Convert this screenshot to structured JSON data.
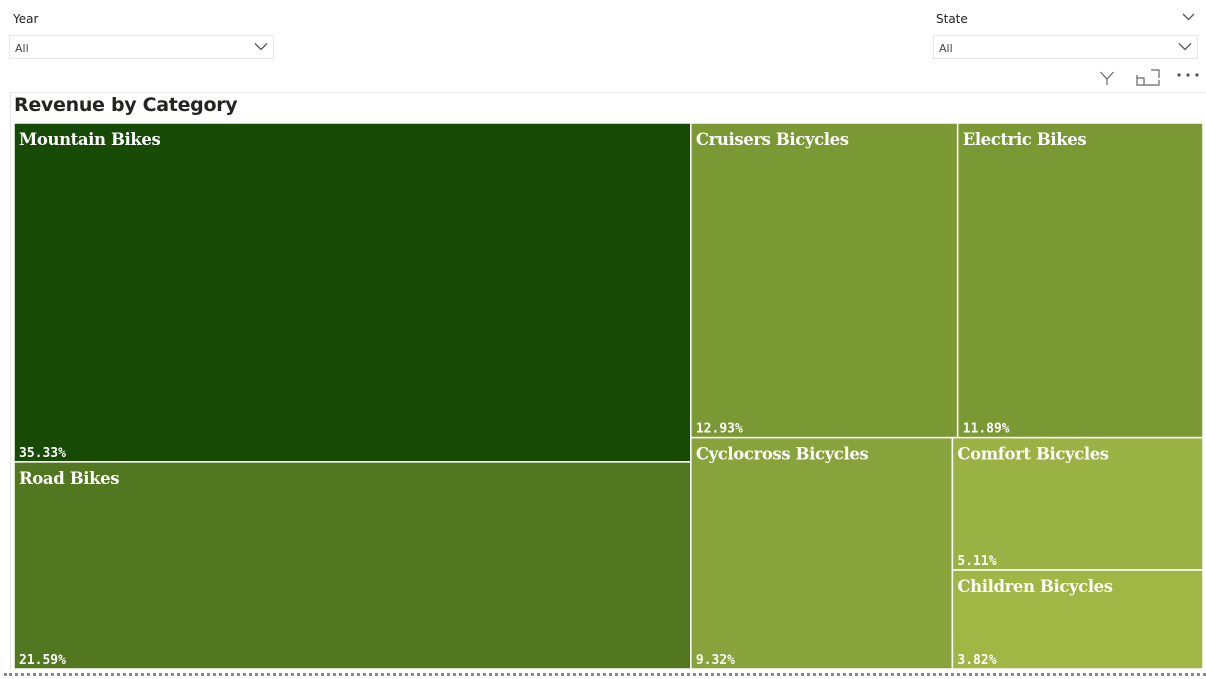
{
  "filters": {
    "year": {
      "label": "Year",
      "value": "All"
    },
    "state": {
      "label": "State",
      "value": "All"
    }
  },
  "icons": {
    "dropdown": "chevron-down-icon",
    "filter": "filter-icon",
    "focus_mode": "focus-mode-icon",
    "more_options": "more-options-icon"
  },
  "colors": {
    "title": "#252423",
    "label": "#ffffff",
    "border": "#ffffff"
  },
  "chart_data": {
    "type": "treemap",
    "title": "Revenue by Category",
    "unit": "%",
    "items": [
      {
        "name": "Mountain Bikes",
        "value": 35.33,
        "label": "35.33%",
        "color": "#174a05"
      },
      {
        "name": "Road Bikes",
        "value": 21.59,
        "label": "21.59%",
        "color": "#527721"
      },
      {
        "name": "Cruisers Bicycles",
        "value": 12.93,
        "label": "12.93%",
        "color": "#7a9833"
      },
      {
        "name": "Electric Bikes",
        "value": 11.89,
        "label": "11.89%",
        "color": "#7a9833"
      },
      {
        "name": "Cyclocross Bicycles",
        "value": 9.32,
        "label": "9.32%",
        "color": "#88a33b"
      },
      {
        "name": "Comfort Bicycles",
        "value": 5.11,
        "label": "5.11%",
        "color": "#9ab243"
      },
      {
        "name": "Children Bicycles",
        "value": 3.82,
        "label": "3.82%",
        "color": "#a0b645"
      }
    ]
  }
}
